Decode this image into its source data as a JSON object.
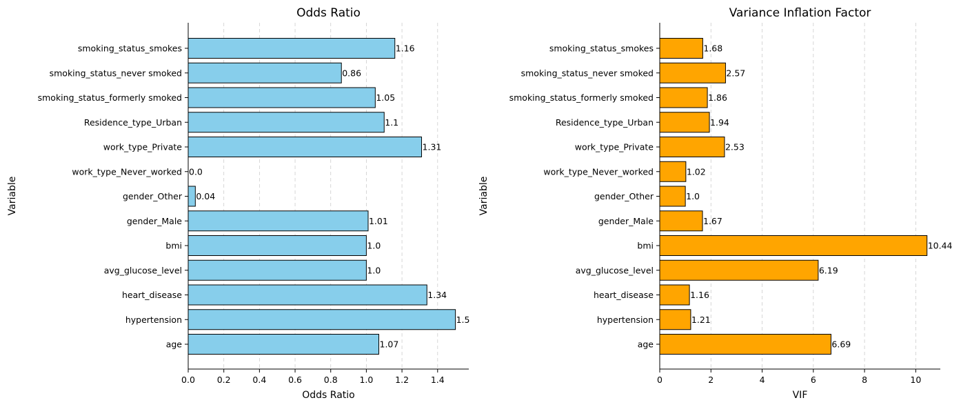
{
  "chart_data": [
    {
      "type": "bar",
      "orientation": "horizontal",
      "title": "Odds Ratio",
      "xlabel": "Odds Ratio",
      "ylabel": "Variable",
      "categories": [
        "age",
        "hypertension",
        "heart_disease",
        "avg_glucose_level",
        "bmi",
        "gender_Male",
        "gender_Other",
        "work_type_Never_worked",
        "work_type_Private",
        "Residence_type_Urban",
        "smoking_status_formerly smoked",
        "smoking_status_never smoked",
        "smoking_status_smokes"
      ],
      "values": [
        1.07,
        1.5,
        1.34,
        1.0,
        1.0,
        1.01,
        0.04,
        0.0,
        1.31,
        1.1,
        1.05,
        0.86,
        1.16
      ],
      "value_labels": [
        "1.07",
        "1.5",
        "1.34",
        "1.0",
        "1.0",
        "1.01",
        "0.04",
        "0.0",
        "1.31",
        "1.1",
        "1.05",
        "0.86",
        "1.16"
      ],
      "xticks": [
        "0.0",
        "0.2",
        "0.4",
        "0.6",
        "0.8",
        "1.0",
        "1.2",
        "1.4"
      ],
      "xlim": [
        0,
        1.575
      ],
      "grid": "x-dashed",
      "bar_color": "#87CEEB",
      "edge_color": "#000000"
    },
    {
      "type": "bar",
      "orientation": "horizontal",
      "title": "Variance Inflation Factor",
      "xlabel": "VIF",
      "ylabel": "Variable",
      "categories": [
        "age",
        "hypertension",
        "heart_disease",
        "avg_glucose_level",
        "bmi",
        "gender_Male",
        "gender_Other",
        "work_type_Never_worked",
        "work_type_Private",
        "Residence_type_Urban",
        "smoking_status_formerly smoked",
        "smoking_status_never smoked",
        "smoking_status_smokes"
      ],
      "values": [
        6.69,
        1.21,
        1.16,
        6.19,
        10.44,
        1.67,
        1.0,
        1.02,
        2.53,
        1.94,
        1.86,
        2.57,
        1.68
      ],
      "value_labels": [
        "6.69",
        "1.21",
        "1.16",
        "6.19",
        "10.44",
        "1.67",
        "1.0",
        "1.02",
        "2.53",
        "1.94",
        "1.86",
        "2.57",
        "1.68"
      ],
      "xticks": [
        "0",
        "2",
        "4",
        "6",
        "8",
        "10"
      ],
      "xlim": [
        0,
        10.96
      ],
      "grid": "x-dashed",
      "bar_color": "#FFA500",
      "edge_color": "#000000"
    }
  ]
}
